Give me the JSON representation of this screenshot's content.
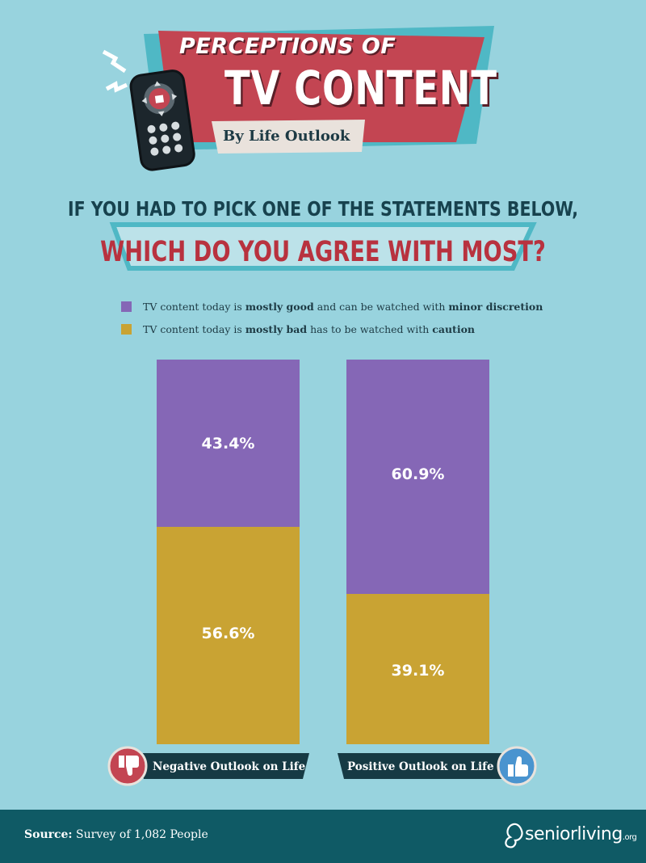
{
  "header": {
    "title_line1": "PERCEPTIONS OF",
    "title_line2": "TV CONTENT",
    "subtitle": "By Life Outlook"
  },
  "question": {
    "intro": "IF YOU HAD TO PICK ONE OF THE STATEMENTS BELOW,",
    "main": "WHICH DO YOU AGREE WITH MOST?"
  },
  "legend": [
    {
      "key": "good",
      "color": "#8567b6",
      "pre": "TV content today is ",
      "bold1": "mostly good",
      "mid": " and can be watched with ",
      "bold2": "minor discretion"
    },
    {
      "key": "bad",
      "color": "#c9a333",
      "pre": "TV content today is ",
      "bold1": "mostly bad",
      "mid": " has to be watched with ",
      "bold2": "caution"
    }
  ],
  "colors": {
    "background": "#98d3de",
    "good": "#8567b6",
    "bad": "#c9a333",
    "banner_red": "#c34552",
    "banner_teal": "#4fb8c5",
    "footer": "#0f5a65",
    "tag_dark": "#163a44"
  },
  "chart_data": {
    "type": "bar",
    "stacked": true,
    "percent_stacked": true,
    "categories": [
      "Negative Outlook on Life",
      "Positive Outlook on Life"
    ],
    "series": [
      {
        "name": "TV content today is mostly good and can be watched with minor discretion",
        "values": [
          43.4,
          60.9
        ],
        "labels": [
          "43.4%",
          "60.9%"
        ]
      },
      {
        "name": "TV content today is mostly bad and has to be watched with caution",
        "values": [
          56.6,
          39.1
        ],
        "labels": [
          "56.6%",
          "39.1%"
        ]
      }
    ],
    "ylim": [
      0,
      100
    ]
  },
  "categories_icons": [
    "thumbs-down-icon",
    "thumbs-up-icon"
  ],
  "footer": {
    "source_label": "Source:",
    "source_text": " Survey of 1,082 People",
    "brand": "seniorliving",
    "brand_suffix": ".org"
  }
}
